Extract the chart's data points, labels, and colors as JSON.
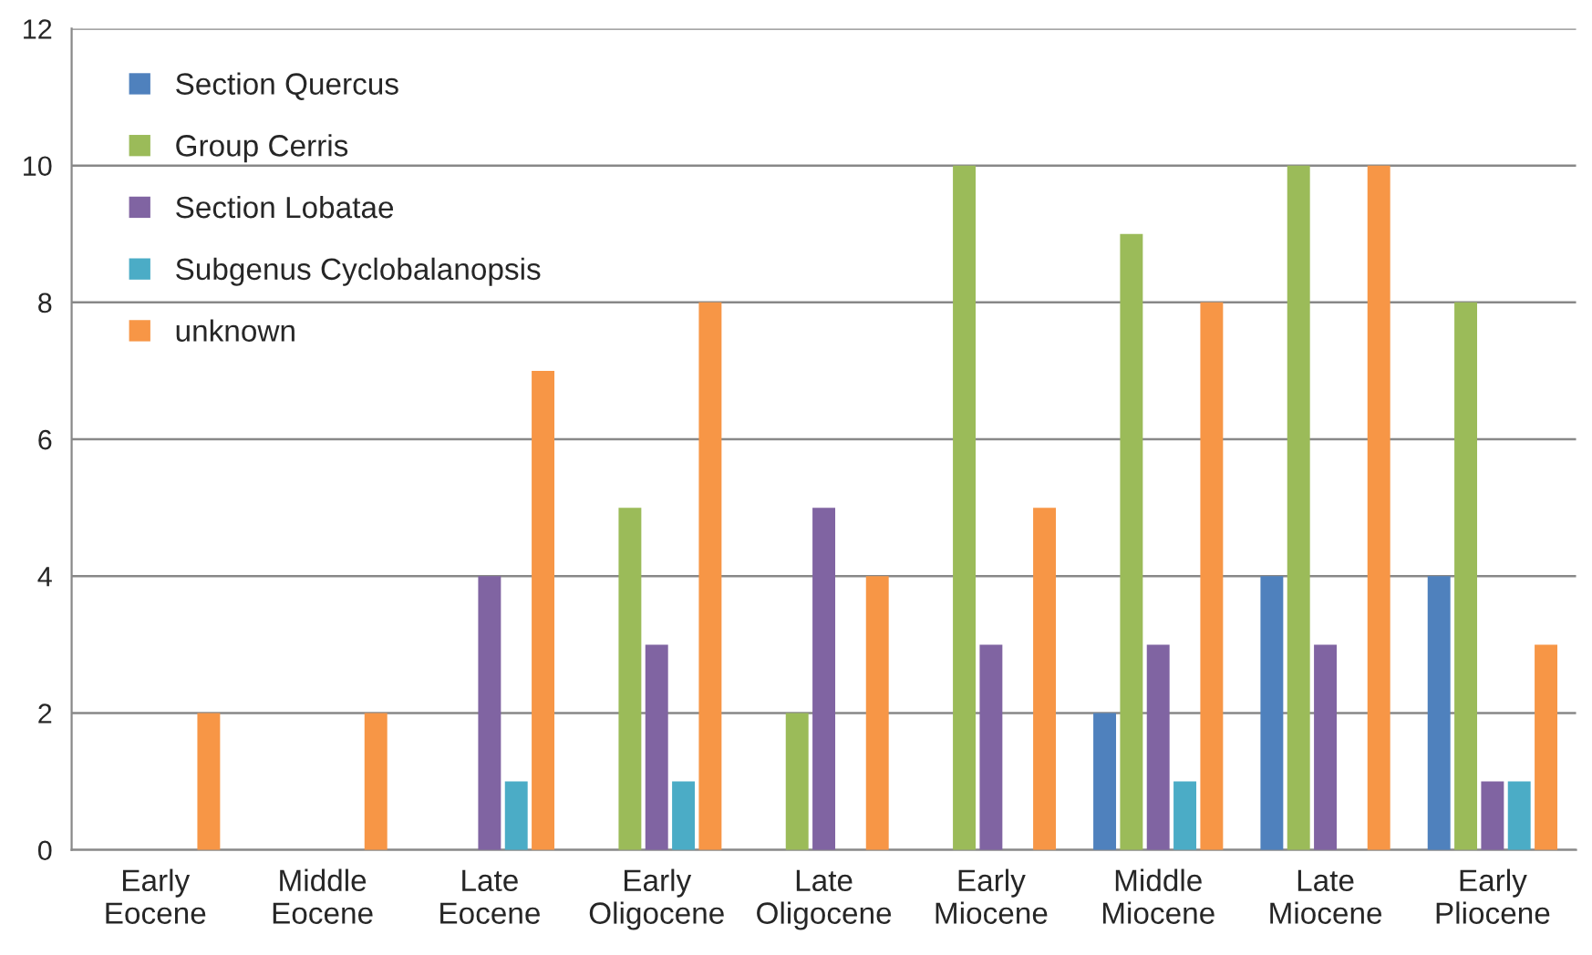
{
  "chart_data": {
    "type": "bar",
    "categories": [
      "Early Eocene",
      "Middle Eocene",
      "Late Eocene",
      "Early Oligocene",
      "Late Oligocene",
      "Early Miocene",
      "Middle Miocene",
      "Late Miocene",
      "Early Pliocene"
    ],
    "series": [
      {
        "name": "Section Quercus",
        "color": "#4f81bd",
        "values": [
          0,
          0,
          0,
          0,
          0,
          0,
          2,
          4,
          4
        ]
      },
      {
        "name": "Group Cerris",
        "color": "#9bbb59",
        "values": [
          0,
          0,
          0,
          5,
          2,
          10,
          9,
          10,
          8
        ]
      },
      {
        "name": "Section Lobatae",
        "color": "#8064a2",
        "values": [
          0,
          0,
          4,
          3,
          5,
          3,
          3,
          3,
          1
        ]
      },
      {
        "name": "Subgenus Cyclobalanopsis",
        "color": "#4bacc6",
        "values": [
          0,
          0,
          1,
          1,
          0,
          0,
          1,
          0,
          1
        ]
      },
      {
        "name": "unknown",
        "color": "#f79646",
        "values": [
          2,
          2,
          7,
          8,
          4,
          5,
          8,
          10,
          3
        ]
      }
    ],
    "ylim": [
      0,
      12
    ],
    "yticks": [
      0,
      2,
      4,
      6,
      8,
      10,
      12
    ],
    "grid": "y",
    "legend": "top left"
  }
}
